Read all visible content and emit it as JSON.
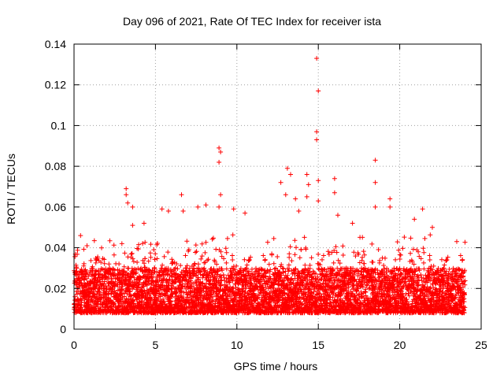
{
  "chart_data": {
    "type": "scatter",
    "title": "Day 096 of 2021, Rate Of TEC Index for receiver ista",
    "xlabel": "GPS time / hours",
    "ylabel": "ROTI / TECUs",
    "xlim": [
      0,
      25
    ],
    "ylim": [
      0,
      0.14
    ],
    "xticks": [
      "0",
      "5",
      "10",
      "15",
      "20",
      "25"
    ],
    "yticks": [
      "0",
      "0.02",
      "0.04",
      "0.06",
      "0.08",
      "0.1",
      "0.12",
      "0.14"
    ],
    "grid": true,
    "marker": "+",
    "color": "#ff0000",
    "series": [
      {
        "name": "ROTI",
        "sampling_hours": 0.0083,
        "time_range": [
          0,
          24
        ],
        "baseline_range": [
          0.008,
          0.03
        ],
        "outliers": [
          {
            "x": 0.1,
            "y": 0.028
          },
          {
            "x": 0.4,
            "y": 0.046
          },
          {
            "x": 0.8,
            "y": 0.041
          },
          {
            "x": 3.2,
            "y": 0.069
          },
          {
            "x": 3.2,
            "y": 0.066
          },
          {
            "x": 3.3,
            "y": 0.062
          },
          {
            "x": 3.6,
            "y": 0.06
          },
          {
            "x": 3.6,
            "y": 0.051
          },
          {
            "x": 4.3,
            "y": 0.052
          },
          {
            "x": 5.4,
            "y": 0.059
          },
          {
            "x": 5.8,
            "y": 0.058
          },
          {
            "x": 6.6,
            "y": 0.066
          },
          {
            "x": 6.7,
            "y": 0.058
          },
          {
            "x": 7.6,
            "y": 0.06
          },
          {
            "x": 8.1,
            "y": 0.061
          },
          {
            "x": 8.9,
            "y": 0.089
          },
          {
            "x": 9.0,
            "y": 0.087
          },
          {
            "x": 8.9,
            "y": 0.082
          },
          {
            "x": 9.0,
            "y": 0.066
          },
          {
            "x": 8.9,
            "y": 0.06
          },
          {
            "x": 9.8,
            "y": 0.059
          },
          {
            "x": 10.5,
            "y": 0.057
          },
          {
            "x": 12.7,
            "y": 0.072
          },
          {
            "x": 13.1,
            "y": 0.079
          },
          {
            "x": 13.3,
            "y": 0.076
          },
          {
            "x": 13.0,
            "y": 0.066
          },
          {
            "x": 13.6,
            "y": 0.064
          },
          {
            "x": 13.8,
            "y": 0.058
          },
          {
            "x": 14.3,
            "y": 0.076
          },
          {
            "x": 14.4,
            "y": 0.071
          },
          {
            "x": 14.3,
            "y": 0.065
          },
          {
            "x": 14.9,
            "y": 0.133
          },
          {
            "x": 15.0,
            "y": 0.117
          },
          {
            "x": 14.9,
            "y": 0.097
          },
          {
            "x": 14.9,
            "y": 0.093
          },
          {
            "x": 15.0,
            "y": 0.073
          },
          {
            "x": 15.0,
            "y": 0.063
          },
          {
            "x": 16.0,
            "y": 0.074
          },
          {
            "x": 16.0,
            "y": 0.067
          },
          {
            "x": 16.2,
            "y": 0.056
          },
          {
            "x": 17.1,
            "y": 0.052
          },
          {
            "x": 18.5,
            "y": 0.083
          },
          {
            "x": 18.5,
            "y": 0.072
          },
          {
            "x": 18.5,
            "y": 0.06
          },
          {
            "x": 19.4,
            "y": 0.064
          },
          {
            "x": 19.4,
            "y": 0.06
          },
          {
            "x": 20.9,
            "y": 0.054
          },
          {
            "x": 21.4,
            "y": 0.059
          },
          {
            "x": 22.0,
            "y": 0.05
          },
          {
            "x": 23.5,
            "y": 0.043
          }
        ]
      }
    ]
  }
}
